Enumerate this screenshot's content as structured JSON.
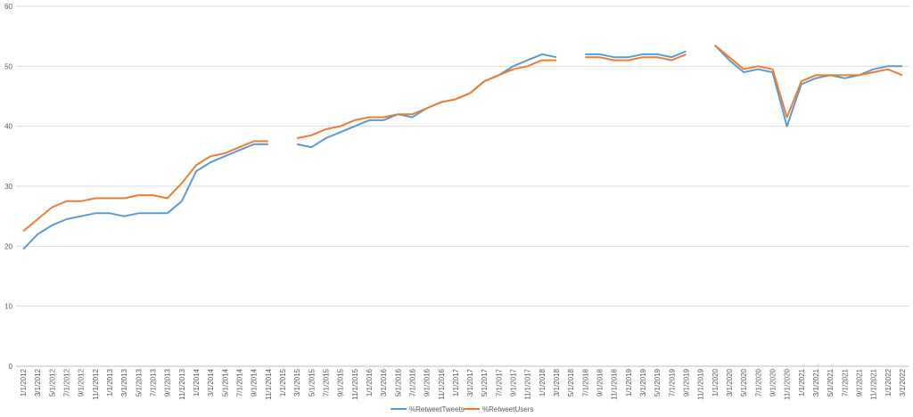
{
  "chart_data": {
    "type": "line",
    "title": "",
    "xlabel": "",
    "ylabel": "",
    "ylim": [
      0,
      60
    ],
    "yticks": [
      0,
      10,
      20,
      30,
      40,
      50,
      60
    ],
    "grid": "horizontal",
    "legend_position": "bottom",
    "x_tick_labels": [
      "1/1/2012",
      "3/1/2012",
      "5/1/2012",
      "7/1/2012",
      "9/1/2012",
      "11/1/2012",
      "1/1/2013",
      "3/1/2013",
      "5/1/2013",
      "7/1/2013",
      "9/1/2013",
      "11/1/2013",
      "1/1/2014",
      "3/1/2014",
      "5/1/2014",
      "7/1/2014",
      "9/1/2014",
      "11/1/2014",
      "1/1/2015",
      "3/1/2015",
      "5/1/2015",
      "7/1/2015",
      "9/1/2015",
      "11/1/2015",
      "1/1/2016",
      "3/1/2016",
      "5/1/2016",
      "7/1/2016",
      "9/1/2016",
      "11/1/2016",
      "1/1/2017",
      "3/1/2017",
      "5/1/2017",
      "7/1/2017",
      "9/1/2017",
      "11/1/2017",
      "1/1/2018",
      "3/1/2018",
      "5/1/2018",
      "7/1/2018",
      "9/1/2018",
      "11/1/2018",
      "1/1/2019",
      "3/1/2019",
      "5/1/2019",
      "7/1/2019",
      "9/1/2019",
      "11/1/2019",
      "1/1/2020",
      "3/1/2020",
      "5/1/2020",
      "7/1/2020",
      "9/1/2020",
      "11/1/2020",
      "1/1/2021",
      "3/1/2021",
      "5/1/2021",
      "7/1/2021",
      "9/1/2021",
      "11/1/2021",
      "1/1/2022",
      "3/1/2022"
    ],
    "x": [
      "2012-01-01",
      "2012-03-01",
      "2012-05-01",
      "2012-07-01",
      "2012-09-01",
      "2012-11-01",
      "2013-01-01",
      "2013-03-01",
      "2013-05-01",
      "2013-07-01",
      "2013-09-01",
      "2013-11-01",
      "2014-01-01",
      "2014-03-01",
      "2014-05-01",
      "2014-07-01",
      "2014-09-01",
      "2014-11-01",
      "2015-01-01",
      "2015-03-01",
      "2015-05-01",
      "2015-07-01",
      "2015-09-01",
      "2015-11-01",
      "2016-01-01",
      "2016-03-01",
      "2016-05-01",
      "2016-07-01",
      "2016-09-01",
      "2016-11-01",
      "2017-01-01",
      "2017-03-01",
      "2017-05-01",
      "2017-07-01",
      "2017-09-01",
      "2017-11-01",
      "2018-01-01",
      "2018-03-01",
      "2018-05-01",
      "2018-07-01",
      "2018-09-01",
      "2018-11-01",
      "2019-01-01",
      "2019-03-01",
      "2019-05-01",
      "2019-07-01",
      "2019-09-01",
      "2019-11-01",
      "2020-01-01",
      "2020-03-01",
      "2020-05-01",
      "2020-07-01",
      "2020-09-01",
      "2020-11-01",
      "2021-01-01",
      "2021-03-01",
      "2021-05-01",
      "2021-07-01",
      "2021-09-01",
      "2021-11-01",
      "2022-01-01",
      "2022-03-01"
    ],
    "series": [
      {
        "name": "%RetweetTweets",
        "color": "#5B9BD5",
        "values": [
          19.5,
          22,
          23.5,
          24.5,
          25,
          25.5,
          25.5,
          25,
          25.5,
          25.5,
          25.5,
          27.5,
          32.5,
          34,
          35,
          36,
          37,
          37,
          null,
          37,
          36.5,
          38,
          39,
          40,
          41,
          41,
          42,
          41.5,
          43,
          44,
          44.5,
          45.5,
          47.5,
          48.5,
          50,
          51,
          52,
          51.5,
          null,
          52,
          52,
          51.5,
          51.5,
          52,
          52,
          51.5,
          52.5,
          null,
          53.5,
          51,
          49,
          49.5,
          49,
          40,
          47,
          48,
          48.5,
          48,
          48.5,
          49.5,
          50,
          50
        ]
      },
      {
        "name": "%RetweetUsers",
        "color": "#ED7D31",
        "values": [
          22.5,
          24.5,
          26.5,
          27.5,
          27.5,
          28,
          28,
          28,
          28.5,
          28.5,
          28,
          30.5,
          33.5,
          35,
          35.5,
          36.5,
          37.5,
          37.5,
          null,
          38,
          38.5,
          39.5,
          40,
          41,
          41.5,
          41.5,
          42,
          42,
          43,
          44,
          44.5,
          45.5,
          47.5,
          48.5,
          49.5,
          50,
          51,
          51,
          null,
          51.5,
          51.5,
          51,
          51,
          51.5,
          51.5,
          51,
          52,
          null,
          53.5,
          51.5,
          49.5,
          50,
          49.5,
          41.5,
          47.5,
          48.5,
          48.5,
          48.5,
          48.5,
          49,
          49.5,
          48.5
        ]
      }
    ]
  }
}
